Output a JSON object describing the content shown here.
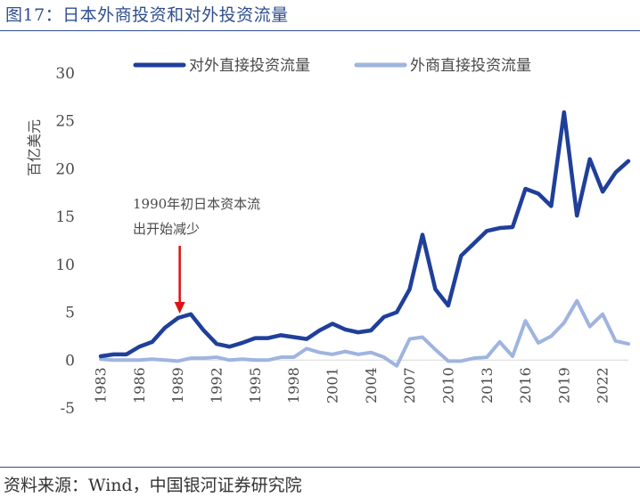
{
  "figure": {
    "title": "图17：日本外商投资和对外投资流量",
    "source": "资料来源：Wind，中国银河证券研究院"
  },
  "colors": {
    "frame": "#2f4f8f",
    "outward": "#1f3f9a",
    "inward": "#9fb4df",
    "arrow": "#e01010",
    "zero_line": "#d9d9d9"
  },
  "chart_data": {
    "type": "line",
    "title": "",
    "xlabel": "",
    "ylabel": "百亿美元",
    "ylim": [
      -5,
      30
    ],
    "yticks": [
      "30",
      "25",
      "20",
      "15",
      "10",
      "5",
      "0",
      "-5"
    ],
    "ytick_values": [
      30,
      25,
      20,
      15,
      10,
      5,
      0,
      -5
    ],
    "xtick_labels": [
      "1983",
      "1986",
      "1989",
      "1992",
      "1995",
      "1998",
      "2001",
      "2004",
      "2007",
      "2010",
      "2013",
      "2016",
      "2019",
      "2022"
    ],
    "xtick_years": [
      1983,
      1986,
      1989,
      1992,
      1995,
      1998,
      2001,
      2004,
      2007,
      2010,
      2013,
      2016,
      2019,
      2022
    ],
    "x": [
      1983,
      1984,
      1985,
      1986,
      1987,
      1988,
      1989,
      1990,
      1991,
      1992,
      1993,
      1994,
      1995,
      1996,
      1997,
      1998,
      1999,
      2000,
      2001,
      2002,
      2003,
      2004,
      2005,
      2006,
      2007,
      2008,
      2009,
      2010,
      2011,
      2012,
      2013,
      2014,
      2015,
      2016,
      2017,
      2018,
      2019,
      2020,
      2021,
      2022,
      2023
    ],
    "series": [
      {
        "name": "对外直接投资流量",
        "values": [
          0.4,
          0.6,
          0.6,
          1.4,
          1.9,
          3.4,
          4.4,
          4.8,
          3.1,
          1.7,
          1.4,
          1.8,
          2.3,
          2.3,
          2.6,
          2.4,
          2.2,
          3.1,
          3.8,
          3.2,
          2.9,
          3.1,
          4.5,
          5.0,
          7.4,
          13.1,
          7.4,
          5.7,
          10.9,
          12.2,
          13.5,
          13.8,
          13.9,
          17.9,
          17.4,
          16.1,
          25.9,
          15.1,
          21.0,
          17.6,
          19.6
        ]
      },
      {
        "name": "外商直接投资流量",
        "values": [
          0.1,
          0.0,
          0.0,
          0.0,
          0.1,
          0.0,
          -0.1,
          0.2,
          0.2,
          0.3,
          0.0,
          0.1,
          0.0,
          0.0,
          0.3,
          0.3,
          1.2,
          0.8,
          0.6,
          0.9,
          0.6,
          0.8,
          0.3,
          -0.6,
          2.2,
          2.4,
          1.1,
          -0.1,
          -0.1,
          0.2,
          0.3,
          1.9,
          0.4,
          4.1,
          1.8,
          2.5,
          3.9,
          6.2,
          3.5,
          4.8,
          2.0
        ]
      }
    ],
    "extra_point": {
      "x": 2024,
      "outward": 20.8,
      "inward": 1.7
    },
    "annotation": {
      "lines": [
        "1990年初日本资本流",
        "出开始减少"
      ],
      "arrow_x": 1989,
      "arrow_value": 4.5
    }
  }
}
